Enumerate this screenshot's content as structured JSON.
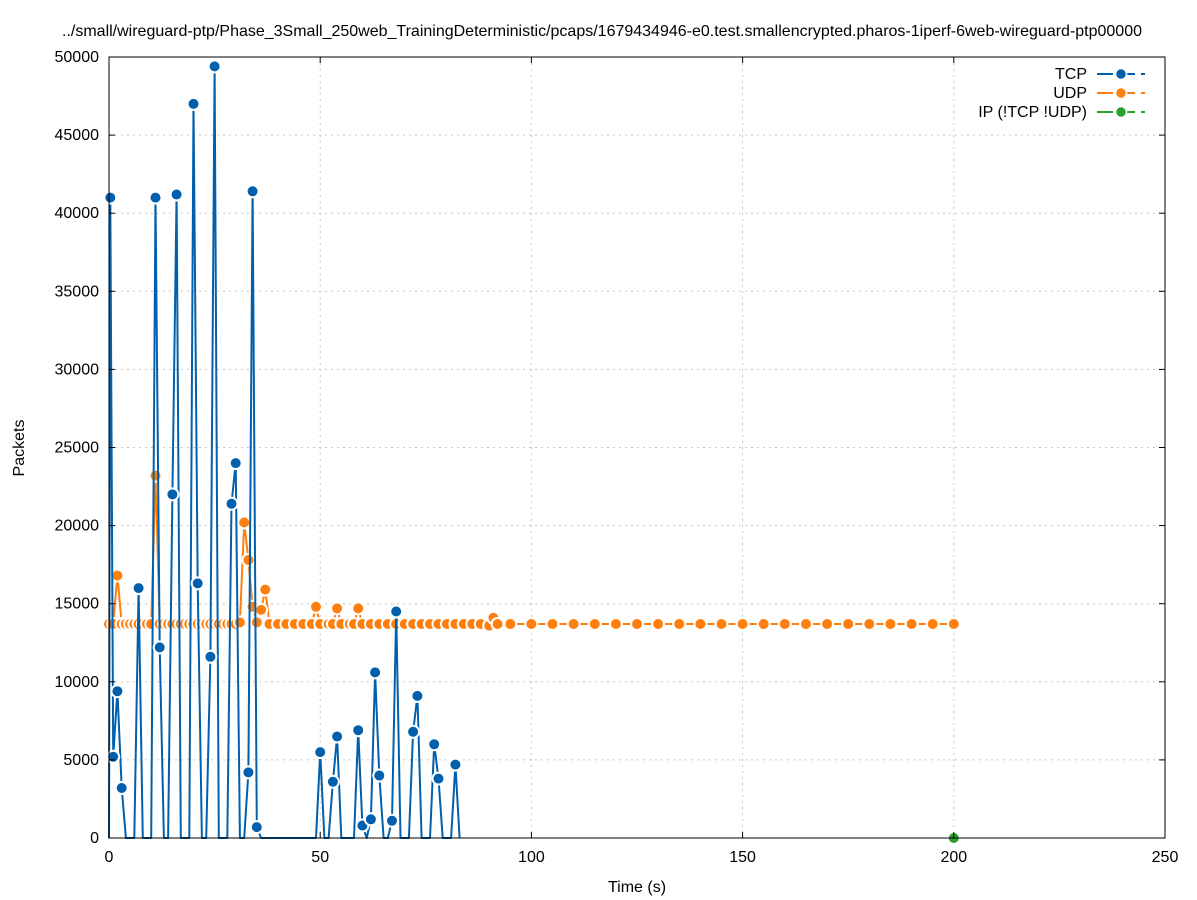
{
  "chart_data": {
    "type": "line",
    "title": "../small/wireguard-ptp/Phase_3Small_250web_TrainingDeterministic/pcaps/1679434946-e0.test.smallencrypted.pharos-1iperf-6web-wireguard-ptp00000",
    "xlabel": "Time (s)",
    "ylabel": "Packets",
    "xlim": [
      0,
      250
    ],
    "ylim": [
      0,
      50000
    ],
    "xticks": [
      0,
      50,
      100,
      150,
      200,
      250
    ],
    "yticks": [
      0,
      5000,
      10000,
      15000,
      20000,
      25000,
      30000,
      35000,
      40000,
      45000,
      50000
    ],
    "grid": true,
    "legend_position": "top-right",
    "series": [
      {
        "name": "TCP",
        "color": "#0060ad",
        "x": [
          0,
          0.3,
          1,
          2,
          3,
          4,
          5,
          6,
          7,
          8,
          9,
          10,
          11,
          12,
          13,
          14,
          15,
          16,
          17,
          18,
          19,
          20,
          21,
          22,
          23,
          24,
          25,
          26,
          27,
          28,
          29,
          30,
          31,
          32,
          33,
          34,
          35,
          36,
          48,
          49,
          50,
          51,
          52,
          53,
          54,
          55,
          56,
          57,
          58,
          59,
          60,
          61,
          62,
          63,
          64,
          65,
          66,
          67,
          68,
          69,
          70,
          71,
          72,
          73,
          74,
          75,
          76,
          77,
          78,
          79,
          80,
          81,
          82,
          83
        ],
        "y": [
          0,
          41000,
          5200,
          9400,
          3200,
          0,
          0,
          0,
          16000,
          0,
          0,
          0,
          41000,
          12200,
          0,
          0,
          22000,
          41200,
          0,
          0,
          0,
          47000,
          16300,
          0,
          0,
          11600,
          49400,
          0,
          0,
          0,
          21400,
          24000,
          0,
          0,
          4200,
          41400,
          700,
          0,
          0,
          0,
          5500,
          0,
          0,
          3600,
          6500,
          0,
          0,
          0,
          0,
          6900,
          800,
          0,
          1200,
          10600,
          4000,
          0,
          0,
          1100,
          14500,
          0,
          0,
          0,
          6800,
          9100,
          0,
          0,
          0,
          6000,
          3800,
          0,
          0,
          0,
          4700,
          0
        ]
      },
      {
        "name": "UDP",
        "color": "#ff7f0e",
        "x": [
          0,
          1,
          2,
          3,
          4,
          5,
          6,
          7,
          8,
          9,
          10,
          11,
          12,
          13,
          14,
          15,
          16,
          17,
          18,
          19,
          20,
          21,
          22,
          23,
          24,
          25,
          26,
          27,
          28,
          29,
          30,
          31,
          32,
          33,
          34,
          35,
          36,
          37,
          38,
          40,
          42,
          44,
          46,
          48,
          49,
          50,
          52,
          53,
          54,
          55,
          57,
          58,
          59,
          60,
          62,
          64,
          66,
          68,
          70,
          72,
          74,
          76,
          78,
          80,
          82,
          84,
          86,
          88,
          90,
          91,
          92,
          95,
          100,
          105,
          110,
          115,
          120,
          125,
          130,
          135,
          140,
          145,
          150,
          155,
          160,
          165,
          170,
          175,
          180,
          185,
          190,
          195,
          200
        ],
        "y": [
          13700,
          13700,
          16800,
          13700,
          13700,
          13700,
          13700,
          13700,
          13700,
          13700,
          13700,
          23200,
          13700,
          13700,
          13700,
          13700,
          13700,
          13700,
          13700,
          13700,
          13700,
          13700,
          13700,
          13700,
          13700,
          13700,
          13700,
          13700,
          13700,
          13700,
          13700,
          13800,
          20200,
          17800,
          14800,
          13800,
          14600,
          15900,
          13700,
          13700,
          13700,
          13700,
          13700,
          13700,
          14800,
          13700,
          13700,
          13700,
          14700,
          13700,
          13700,
          13700,
          14700,
          13700,
          13700,
          13700,
          13700,
          13700,
          13700,
          13700,
          13700,
          13700,
          13700,
          13700,
          13700,
          13700,
          13700,
          13700,
          13600,
          14100,
          13700,
          13700,
          13700,
          13700,
          13700,
          13700,
          13700,
          13700,
          13700,
          13700,
          13700,
          13700,
          13700,
          13700,
          13700,
          13700,
          13700,
          13700,
          13700,
          13700,
          13700,
          13700,
          13700
        ]
      },
      {
        "name": "IP (!TCP  !UDP)",
        "color": "#2ca02c",
        "x": [
          200
        ],
        "y": [
          0
        ]
      }
    ]
  }
}
